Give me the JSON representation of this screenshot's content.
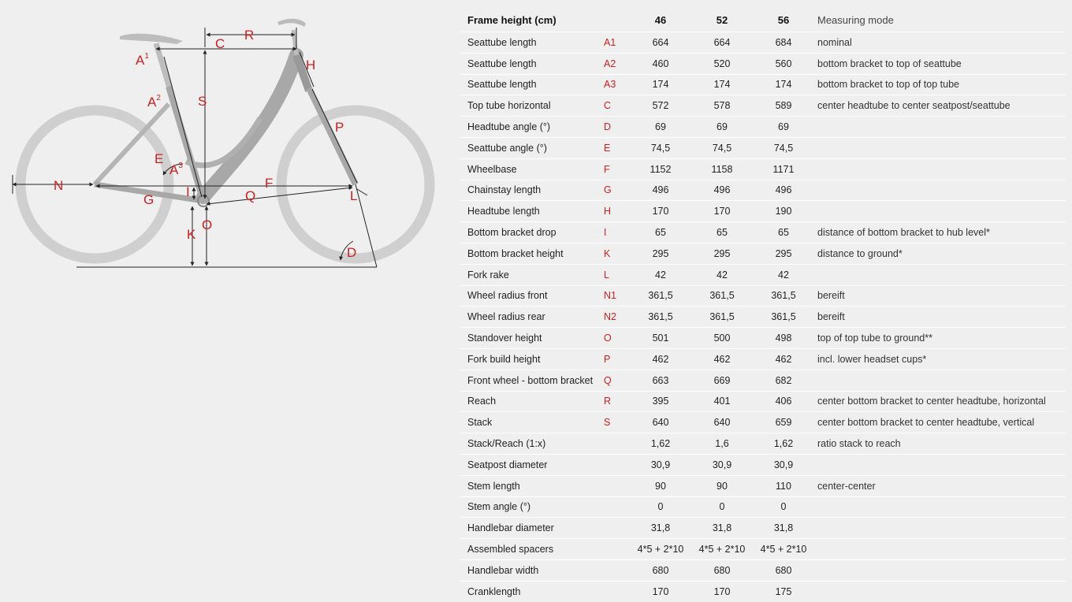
{
  "header": {
    "label": "Frame height (cm)",
    "sizes": [
      "46",
      "52",
      "56"
    ],
    "mode": "Measuring mode"
  },
  "rows": [
    {
      "label": "Seattube length",
      "code": "A1",
      "v": [
        "664",
        "664",
        "684"
      ],
      "mode": "nominal"
    },
    {
      "label": "Seattube length",
      "code": "A2",
      "v": [
        "460",
        "520",
        "560"
      ],
      "mode": "bottom bracket to top of seattube"
    },
    {
      "label": "Seattube length",
      "code": "A3",
      "v": [
        "174",
        "174",
        "174"
      ],
      "mode": "bottom bracket to top of top tube"
    },
    {
      "label": "Top tube horizontal",
      "code": "C",
      "v": [
        "572",
        "578",
        "589"
      ],
      "mode": "center headtube to center seatpost/seattube"
    },
    {
      "label": "Headtube angle (°)",
      "code": "D",
      "v": [
        "69",
        "69",
        "69"
      ],
      "mode": ""
    },
    {
      "label": "Seattube angle (°)",
      "code": "E",
      "v": [
        "74,5",
        "74,5",
        "74,5"
      ],
      "mode": ""
    },
    {
      "label": "Wheelbase",
      "code": "F",
      "v": [
        "1152",
        "1158",
        "1171"
      ],
      "mode": ""
    },
    {
      "label": "Chainstay length",
      "code": "G",
      "v": [
        "496",
        "496",
        "496"
      ],
      "mode": ""
    },
    {
      "label": "Headtube length",
      "code": "H",
      "v": [
        "170",
        "170",
        "190"
      ],
      "mode": ""
    },
    {
      "label": "Bottom bracket drop",
      "code": "I",
      "v": [
        "65",
        "65",
        "65"
      ],
      "mode": "distance of bottom bracket to hub level*"
    },
    {
      "label": "Bottom bracket height",
      "code": "K",
      "v": [
        "295",
        "295",
        "295"
      ],
      "mode": "distance to ground*"
    },
    {
      "label": "Fork rake",
      "code": "L",
      "v": [
        "42",
        "42",
        "42"
      ],
      "mode": ""
    },
    {
      "label": "Wheel radius front",
      "code": "N1",
      "v": [
        "361,5",
        "361,5",
        "361,5"
      ],
      "mode": "bereift"
    },
    {
      "label": "Wheel radius rear",
      "code": "N2",
      "v": [
        "361,5",
        "361,5",
        "361,5"
      ],
      "mode": "bereift"
    },
    {
      "label": "Standover height",
      "code": "O",
      "v": [
        "501",
        "500",
        "498"
      ],
      "mode": "top of top tube to ground**"
    },
    {
      "label": "Fork build height",
      "code": "P",
      "v": [
        "462",
        "462",
        "462"
      ],
      "mode": "incl. lower headset cups*"
    },
    {
      "label": "Front wheel - bottom bracket",
      "code": "Q",
      "v": [
        "663",
        "669",
        "682"
      ],
      "mode": ""
    },
    {
      "label": "Reach",
      "code": "R",
      "v": [
        "395",
        "401",
        "406"
      ],
      "mode": "center bottom bracket to center headtube, horizontal"
    },
    {
      "label": "Stack",
      "code": "S",
      "v": [
        "640",
        "640",
        "659"
      ],
      "mode": "center bottom bracket to center headtube, vertical"
    },
    {
      "label": "Stack/Reach (1:x)",
      "code": "",
      "v": [
        "1,62",
        "1,6",
        "1,62"
      ],
      "mode": "ratio stack to reach"
    },
    {
      "label": "Seatpost diameter",
      "code": "",
      "v": [
        "30,9",
        "30,9",
        "30,9"
      ],
      "mode": ""
    },
    {
      "label": "Stem length",
      "code": "",
      "v": [
        "90",
        "90",
        "110"
      ],
      "mode": "center-center"
    },
    {
      "label": "Stem angle (°)",
      "code": "",
      "v": [
        "0",
        "0",
        "0"
      ],
      "mode": ""
    },
    {
      "label": "Handlebar diameter",
      "code": "",
      "v": [
        "31,8",
        "31,8",
        "31,8"
      ],
      "mode": ""
    },
    {
      "label": "Assembled spacers",
      "code": "",
      "v": [
        "4*5 + 2*10",
        "4*5 + 2*10",
        "4*5 + 2*10"
      ],
      "mode": ""
    },
    {
      "label": "Handlebar width",
      "code": "",
      "v": [
        "680",
        "680",
        "680"
      ],
      "mode": ""
    },
    {
      "label": "Cranklength",
      "code": "",
      "v": [
        "170",
        "170",
        "175"
      ],
      "mode": ""
    }
  ],
  "diagram_labels": {
    "A": "A",
    "A1_sup": "1",
    "A2_sup": "2",
    "A3_sup": "3",
    "C": "C",
    "R": "R",
    "S": "S",
    "H": "H",
    "P": "P",
    "E": "E",
    "N": "N",
    "G": "G",
    "I": "I",
    "F": "F",
    "Q": "Q",
    "L": "L",
    "K": "K",
    "O": "O",
    "D": "D"
  },
  "colors": {
    "label_red": "#cc1f1f",
    "wheel_gray": "#cfcfcf",
    "frame_gray": "#a8a8a8",
    "background": "#efefef"
  }
}
